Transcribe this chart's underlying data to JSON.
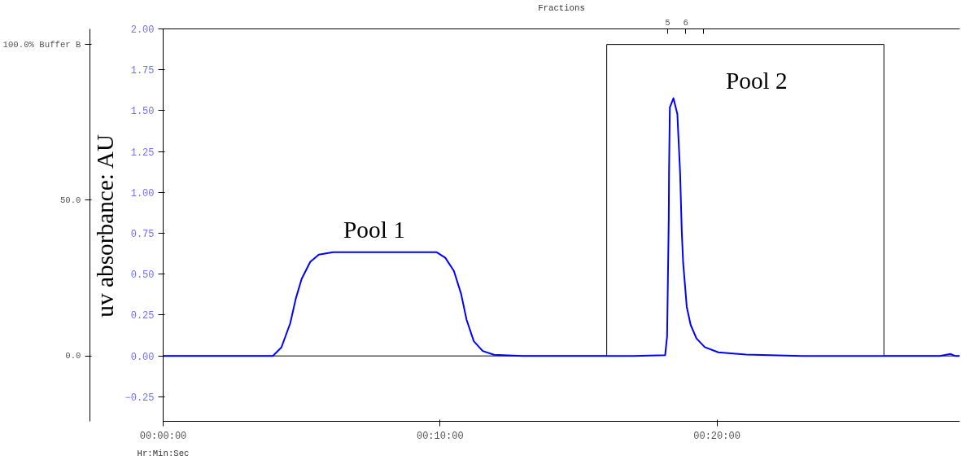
{
  "chart_data": {
    "type": "line",
    "xlabel": "Hr:Min:Sec",
    "ylabel": "uv absorbance: AU",
    "x2label": "Fractions",
    "xlim": [
      0,
      28.77
    ],
    "xticks": [
      {
        "value": 0,
        "label": "00:00:00"
      },
      {
        "value": 10,
        "label": "00:10:00"
      },
      {
        "value": 20,
        "label": "00:20:00"
      }
    ],
    "x2lim": [
      -23.03,
      21.23
    ],
    "x2ticks": [
      5,
      6,
      {
        "value": 7,
        "label": null
      }
    ],
    "ylim": [
      -0.4,
      2.0
    ],
    "yticks": [
      {
        "value": -0.25,
        "label": "−0.25"
      },
      {
        "value": 0,
        "label": "0.00"
      },
      {
        "value": 0.25,
        "label": "0.25"
      },
      {
        "value": 0.5,
        "label": "0.50"
      },
      {
        "value": 0.75,
        "label": "0.75"
      },
      {
        "value": 1.0,
        "label": "1.00"
      },
      {
        "value": 1.25,
        "label": "1.25"
      },
      {
        "value": 1.5,
        "label": "1.50"
      },
      {
        "value": 1.75,
        "label": "1.75"
      },
      {
        "value": 2.0,
        "label": "2.00"
      }
    ],
    "y2lim": [
      -21,
      105
    ],
    "y2ticks": [
      {
        "value": 0,
        "label": "0.0"
      },
      {
        "value": 50,
        "label": "50.0"
      },
      {
        "value": 100,
        "label": "100.0% Buffer B"
      }
    ],
    "grid": false,
    "marker": "none",
    "line_style": "solid",
    "series": [
      {
        "color": "#0000ff",
        "x": [
          0,
          1,
          2,
          3,
          3.96,
          4.27,
          4.59,
          4.79,
          5.0,
          5.31,
          5.62,
          6.14,
          7.18,
          8.5,
          9.88,
          10.19,
          10.5,
          10.76,
          10.96,
          11.22,
          11.54,
          11.95,
          12.99,
          15,
          17,
          18.13,
          18.2,
          18.26,
          18.27,
          18.3,
          18.43,
          18.57,
          18.67,
          18.73,
          18.78,
          18.91,
          19.05,
          19.26,
          19.56,
          20.05,
          21.05,
          23.06,
          25,
          28.05,
          28.43,
          28.6,
          28.77
        ],
        "values": [
          0,
          0,
          0,
          0,
          0,
          0.052,
          0.2,
          0.35,
          0.47,
          0.575,
          0.62,
          0.634,
          0.634,
          0.634,
          0.634,
          0.6,
          0.52,
          0.38,
          0.22,
          0.09,
          0.03,
          0.007,
          0,
          0,
          0,
          0.005,
          0.12,
          0.84,
          1.12,
          1.52,
          1.576,
          1.48,
          1.12,
          0.76,
          0.57,
          0.3,
          0.19,
          0.107,
          0.054,
          0.022,
          0.008,
          0,
          0,
          0,
          0.012,
          0,
          0
        ]
      },
      {
        "type": "line",
        "axis": "y2",
        "color": "#000000",
        "x": [
          0,
          16.02,
          16.02,
          26.03,
          26.03,
          28.77
        ],
        "values": [
          0,
          0,
          100,
          100,
          0,
          0
        ]
      }
    ],
    "annotations": [
      "Pool 1",
      "Pool 2"
    ]
  }
}
